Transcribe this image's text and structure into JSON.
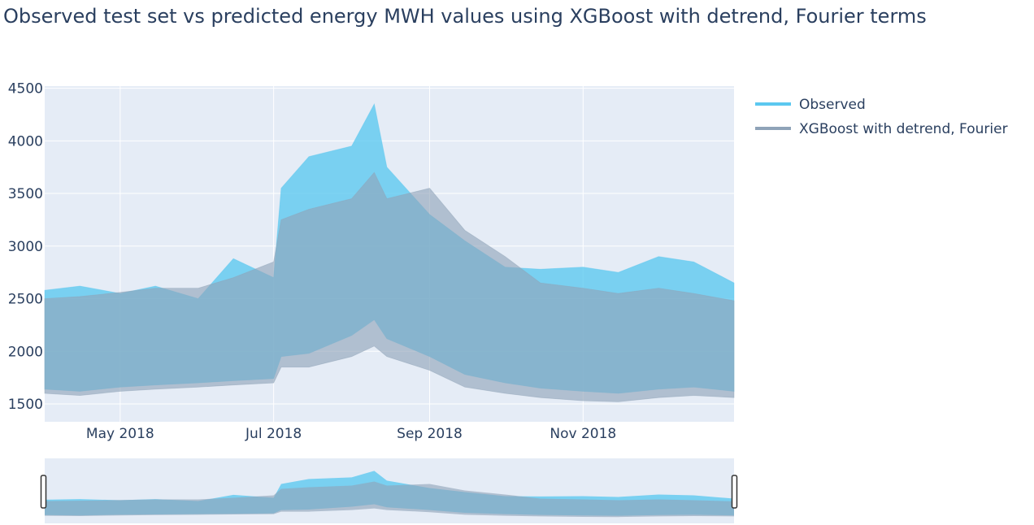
{
  "chart_data": {
    "type": "area",
    "title": "Observed test set vs predicted energy MWH values using XGBoost with detrend, Fourier terms",
    "xlabel": "",
    "ylabel": "",
    "x_range": [
      "2018-04-01",
      "2018-12-31"
    ],
    "ylim": [
      1330,
      4520
    ],
    "y_ticks": [
      1500,
      2000,
      2500,
      3000,
      3500,
      4000,
      4500
    ],
    "x_ticks": [
      {
        "date": "2018-05-01",
        "label": "May 2018"
      },
      {
        "date": "2018-07-01",
        "label": "Jul 2018"
      },
      {
        "date": "2018-09-01",
        "label": "Sep 2018"
      },
      {
        "date": "2018-11-01",
        "label": "Nov 2018"
      }
    ],
    "grid": true,
    "legend_placement": "top-right",
    "range_slider": true,
    "series": [
      {
        "name": "Observed",
        "color": "#5bc8f0",
        "x": [
          "2018-04-01",
          "2018-04-15",
          "2018-05-01",
          "2018-05-15",
          "2018-06-01",
          "2018-06-15",
          "2018-07-01",
          "2018-07-04",
          "2018-07-15",
          "2018-08-01",
          "2018-08-10",
          "2018-08-15",
          "2018-09-01",
          "2018-09-15",
          "2018-10-01",
          "2018-10-15",
          "2018-11-01",
          "2018-11-15",
          "2018-12-01",
          "2018-12-15",
          "2018-12-31"
        ],
        "upper": [
          2580,
          2620,
          2550,
          2620,
          2500,
          2880,
          2700,
          3550,
          3850,
          3950,
          4350,
          3750,
          3300,
          3050,
          2800,
          2780,
          2800,
          2750,
          2900,
          2850,
          2650
        ],
        "lower": [
          1640,
          1620,
          1660,
          1680,
          1700,
          1720,
          1740,
          1950,
          1980,
          2150,
          2300,
          2120,
          1950,
          1780,
          1700,
          1650,
          1620,
          1600,
          1640,
          1660,
          1620
        ]
      },
      {
        "name": "XGBoost with detrend, Fourier",
        "color": "#8fa3b8",
        "x": [
          "2018-04-01",
          "2018-04-15",
          "2018-05-01",
          "2018-05-15",
          "2018-06-01",
          "2018-06-15",
          "2018-07-01",
          "2018-07-04",
          "2018-07-15",
          "2018-08-01",
          "2018-08-10",
          "2018-08-15",
          "2018-09-01",
          "2018-09-15",
          "2018-10-01",
          "2018-10-15",
          "2018-11-01",
          "2018-11-15",
          "2018-12-01",
          "2018-12-15",
          "2018-12-31"
        ],
        "upper": [
          2500,
          2520,
          2560,
          2600,
          2600,
          2700,
          2850,
          3250,
          3350,
          3450,
          3700,
          3450,
          3550,
          3150,
          2900,
          2650,
          2600,
          2550,
          2600,
          2550,
          2480
        ],
        "lower": [
          1600,
          1580,
          1620,
          1640,
          1660,
          1680,
          1700,
          1850,
          1850,
          1950,
          2050,
          1950,
          1820,
          1660,
          1600,
          1560,
          1530,
          1520,
          1560,
          1580,
          1560
        ]
      }
    ]
  }
}
